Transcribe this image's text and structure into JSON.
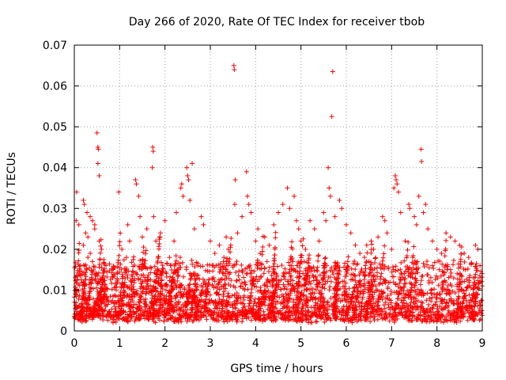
{
  "chart_data": {
    "type": "scatter",
    "title": "Day 266 of 2020, Rate Of TEC Index for receiver tbob",
    "xlabel": "GPS time / hours",
    "ylabel": "ROTI / TECUs",
    "xlim": [
      0,
      9
    ],
    "ylim": [
      0,
      0.07
    ],
    "x_ticks": [
      "0",
      "1",
      "2",
      "3",
      "4",
      "5",
      "6",
      "7",
      "8",
      "9"
    ],
    "x_tick_values": [
      0,
      1,
      2,
      3,
      4,
      5,
      6,
      7,
      8,
      9
    ],
    "y_ticks": [
      "0",
      "0.01",
      "0.02",
      "0.03",
      "0.04",
      "0.05",
      "0.06",
      "0.07"
    ],
    "y_tick_values": [
      0,
      0.01,
      0.02,
      0.03,
      0.04,
      0.05,
      0.06,
      0.07
    ],
    "grid": true,
    "marker": "+",
    "color": "#ff0000",
    "series": [
      {
        "name": "ROTI",
        "points": [
          [
            0.05,
            0.034
          ],
          [
            0.04,
            0.027
          ],
          [
            0.1,
            0.026
          ],
          [
            0.2,
            0.032
          ],
          [
            0.22,
            0.031
          ],
          [
            0.28,
            0.029
          ],
          [
            0.35,
            0.028
          ],
          [
            0.4,
            0.027
          ],
          [
            0.45,
            0.026
          ],
          [
            0.5,
            0.0485
          ],
          [
            0.52,
            0.045
          ],
          [
            0.53,
            0.0445
          ],
          [
            0.52,
            0.041
          ],
          [
            0.55,
            0.038
          ],
          [
            0.45,
            0.025
          ],
          [
            0.55,
            0.022
          ],
          [
            0.6,
            0.02
          ],
          [
            0.3,
            0.018
          ],
          [
            0.12,
            0.014
          ],
          [
            0.2,
            0.021
          ],
          [
            0.35,
            0.019
          ],
          [
            0.4,
            0.017
          ],
          [
            0.25,
            0.024
          ],
          [
            0.3,
            0.023
          ],
          [
            0.98,
            0.034
          ],
          [
            1.18,
            0.026
          ],
          [
            1.22,
            0.022
          ],
          [
            1.35,
            0.037
          ],
          [
            1.37,
            0.036
          ],
          [
            1.42,
            0.033
          ],
          [
            1.45,
            0.028
          ],
          [
            1.5,
            0.023
          ],
          [
            1.6,
            0.025
          ],
          [
            1.73,
            0.045
          ],
          [
            1.74,
            0.044
          ],
          [
            1.72,
            0.04
          ],
          [
            1.75,
            0.028
          ],
          [
            1.8,
            0.022
          ],
          [
            1.9,
            0.024
          ],
          [
            2.0,
            0.027
          ],
          [
            2.1,
            0.018
          ],
          [
            2.2,
            0.022
          ],
          [
            2.25,
            0.029
          ],
          [
            2.35,
            0.035
          ],
          [
            2.37,
            0.036
          ],
          [
            2.4,
            0.033
          ],
          [
            2.48,
            0.04
          ],
          [
            2.5,
            0.038
          ],
          [
            2.52,
            0.037
          ],
          [
            2.55,
            0.032
          ],
          [
            2.6,
            0.041
          ],
          [
            2.65,
            0.025
          ],
          [
            2.8,
            0.028
          ],
          [
            2.85,
            0.026
          ],
          [
            3.0,
            0.022
          ],
          [
            3.1,
            0.019
          ],
          [
            3.2,
            0.021
          ],
          [
            3.3,
            0.018
          ],
          [
            3.4,
            0.02
          ],
          [
            3.52,
            0.065
          ],
          [
            3.53,
            0.064
          ],
          [
            3.55,
            0.037
          ],
          [
            3.54,
            0.031
          ],
          [
            3.6,
            0.024
          ],
          [
            3.7,
            0.028
          ],
          [
            3.8,
            0.039
          ],
          [
            3.82,
            0.033
          ],
          [
            3.85,
            0.031
          ],
          [
            3.9,
            0.029
          ],
          [
            4.0,
            0.022
          ],
          [
            4.1,
            0.019
          ],
          [
            4.2,
            0.023
          ],
          [
            4.3,
            0.021
          ],
          [
            4.4,
            0.026
          ],
          [
            4.5,
            0.029
          ],
          [
            4.6,
            0.031
          ],
          [
            4.7,
            0.035
          ],
          [
            4.75,
            0.03
          ],
          [
            4.85,
            0.033
          ],
          [
            4.9,
            0.027
          ],
          [
            5.0,
            0.022
          ],
          [
            5.1,
            0.02
          ],
          [
            5.2,
            0.027
          ],
          [
            5.3,
            0.025
          ],
          [
            5.4,
            0.022
          ],
          [
            5.5,
            0.029
          ],
          [
            5.55,
            0.027
          ],
          [
            5.6,
            0.04
          ],
          [
            5.62,
            0.035
          ],
          [
            5.65,
            0.033
          ],
          [
            5.7,
            0.0635
          ],
          [
            5.68,
            0.0525
          ],
          [
            5.75,
            0.028
          ],
          [
            5.85,
            0.032
          ],
          [
            5.9,
            0.03
          ],
          [
            6.0,
            0.026
          ],
          [
            6.1,
            0.024
          ],
          [
            6.2,
            0.021
          ],
          [
            6.3,
            0.019
          ],
          [
            6.4,
            0.018
          ],
          [
            6.5,
            0.017
          ],
          [
            6.6,
            0.02
          ],
          [
            6.7,
            0.023
          ],
          [
            6.8,
            0.028
          ],
          [
            6.85,
            0.027
          ],
          [
            6.9,
            0.024
          ],
          [
            7.0,
            0.02
          ],
          [
            7.05,
            0.035
          ],
          [
            7.08,
            0.038
          ],
          [
            7.1,
            0.037
          ],
          [
            7.12,
            0.036
          ],
          [
            7.15,
            0.034
          ],
          [
            7.2,
            0.029
          ],
          [
            7.3,
            0.022
          ],
          [
            7.38,
            0.031
          ],
          [
            7.4,
            0.03
          ],
          [
            7.5,
            0.028
          ],
          [
            7.55,
            0.026
          ],
          [
            7.65,
            0.0445
          ],
          [
            7.66,
            0.0415
          ],
          [
            7.6,
            0.033
          ],
          [
            7.7,
            0.029
          ],
          [
            7.75,
            0.031
          ],
          [
            7.8,
            0.025
          ],
          [
            7.9,
            0.022
          ],
          [
            8.0,
            0.02
          ],
          [
            8.1,
            0.019
          ],
          [
            8.2,
            0.024
          ],
          [
            8.3,
            0.023
          ],
          [
            8.4,
            0.022
          ],
          [
            8.5,
            0.021
          ],
          [
            8.6,
            0.019
          ],
          [
            8.7,
            0.018
          ],
          [
            8.85,
            0.021
          ],
          [
            8.9,
            0.02
          ],
          [
            8.95,
            0.016
          ],
          [
            8.3,
            0.015
          ],
          [
            7.9,
            0.016
          ],
          [
            6.55,
            0.022
          ],
          [
            6.45,
            0.021
          ],
          [
            4.95,
            0.025
          ],
          [
            4.05,
            0.025
          ],
          [
            3.35,
            0.023
          ],
          [
            1.05,
            0.02
          ],
          [
            1.15,
            0.018
          ],
          [
            0.7,
            0.016
          ],
          [
            0.85,
            0.015
          ]
        ]
      }
    ],
    "dense_band": {
      "note": "dense cloud of ROTI samples between ~0.002 and ~0.015 TECU/s across 0-9 h",
      "ymin": 0.002,
      "ymax": 0.016
    }
  }
}
